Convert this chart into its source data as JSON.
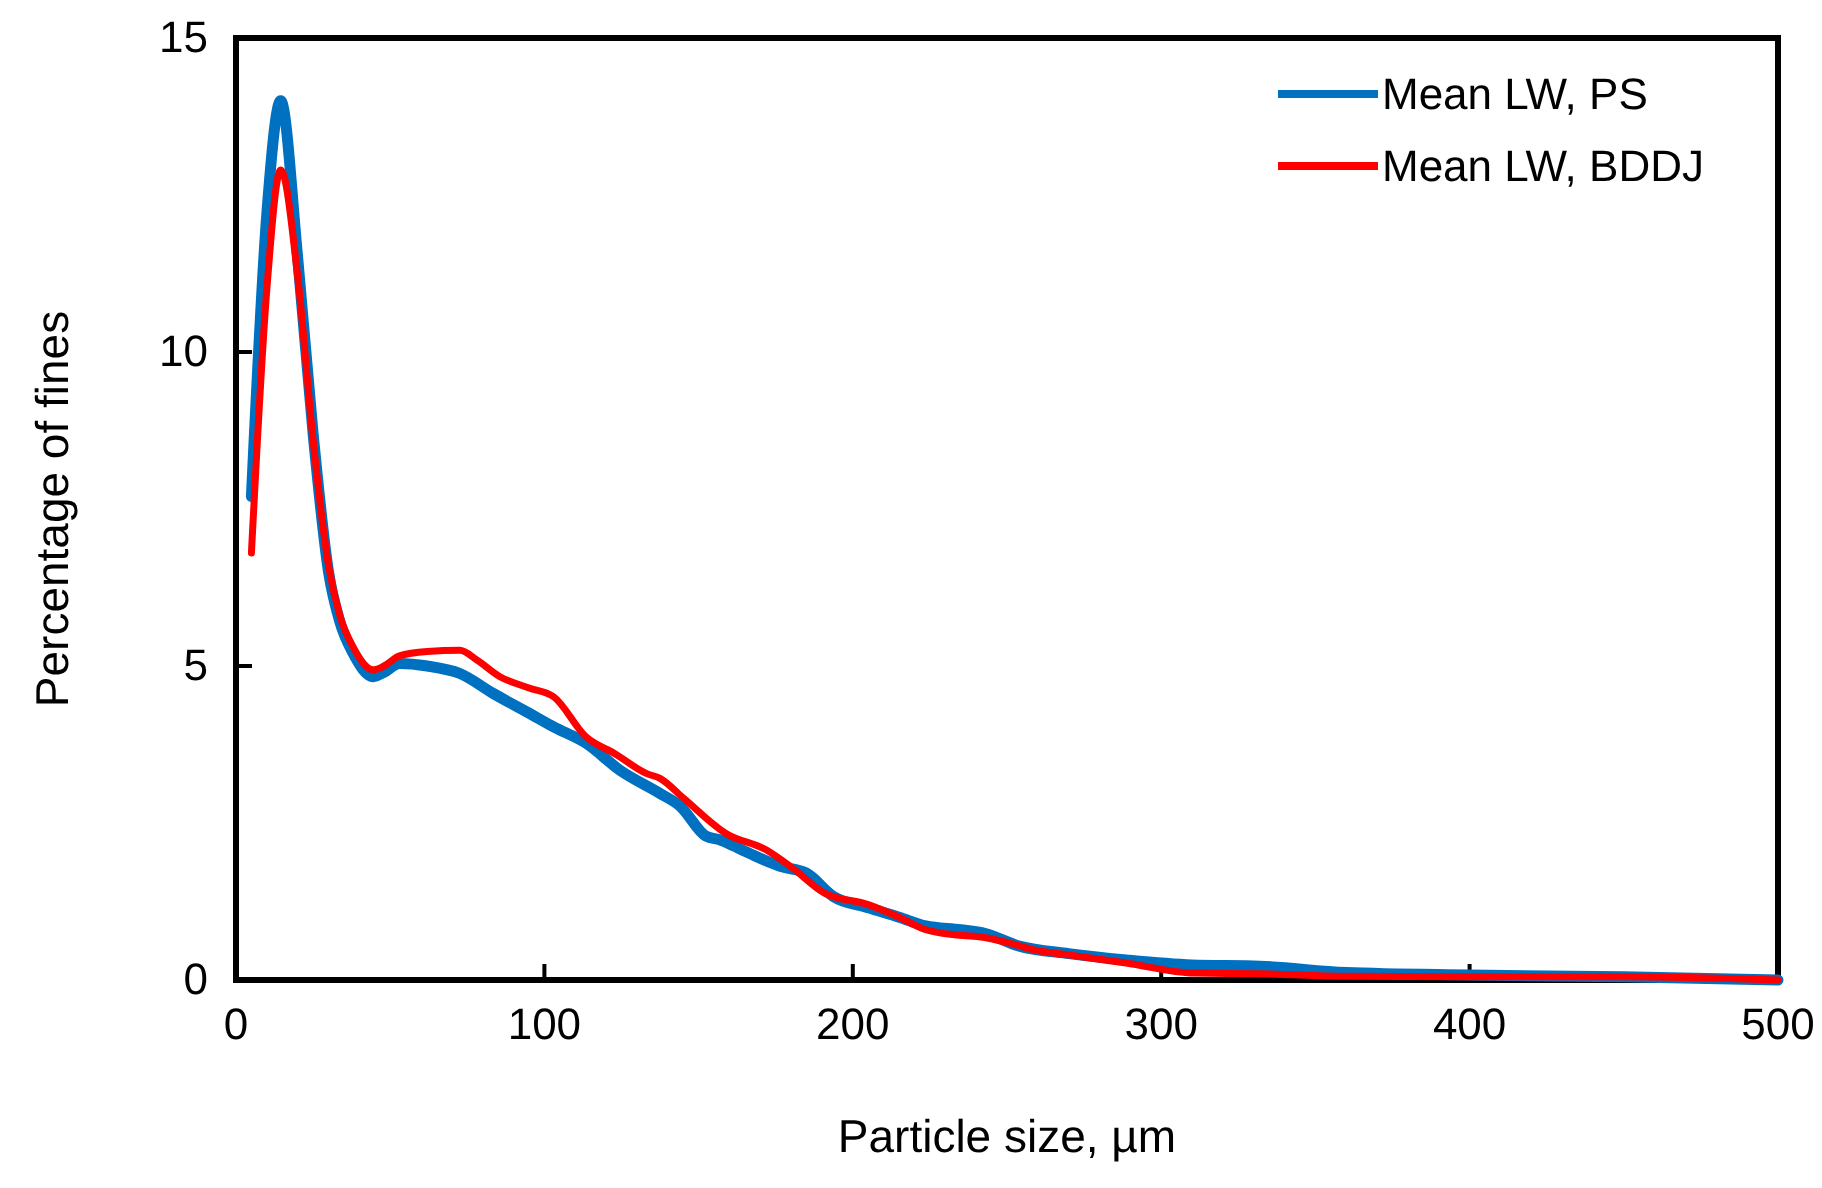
{
  "chart_data": {
    "type": "line",
    "xlabel": "Particle size, µm",
    "ylabel": "Percentage of fines",
    "xlim": [
      0,
      500
    ],
    "xticks": [
      0,
      100,
      200,
      300,
      400,
      500
    ],
    "ylim": [
      0,
      15
    ],
    "yticks": [
      0,
      5,
      10,
      15
    ],
    "grid": false,
    "legend": "top right",
    "marker": "none",
    "line_style": "solid",
    "series": [
      {
        "name": "Mean LW, PS",
        "color": "#0070c0",
        "x": [
          5,
          10,
          14.5,
          20,
          25,
          30,
          33.7,
          38,
          44.5,
          48,
          53,
          62,
          72.6,
          83.5,
          95,
          103,
          113.5,
          124.5,
          137.5,
          144,
          152.4,
          157,
          165,
          176.4,
          185,
          193.7,
          205,
          215,
          223.7,
          235,
          243,
          254,
          270,
          288.6,
          310,
          332,
          360,
          400,
          450,
          500
        ],
        "values": [
          7.7,
          12.2,
          14.0,
          11.5,
          8.7,
          6.5,
          5.7,
          5.2,
          4.83,
          4.9,
          5.04,
          5.0,
          4.88,
          4.56,
          4.25,
          4.03,
          3.77,
          3.34,
          2.97,
          2.77,
          2.29,
          2.23,
          2.05,
          1.81,
          1.7,
          1.33,
          1.15,
          1.0,
          0.86,
          0.8,
          0.74,
          0.54,
          0.42,
          0.32,
          0.24,
          0.22,
          0.12,
          0.08,
          0.05,
          0.0
        ]
      },
      {
        "name": "Mean LW, BDDJ",
        "color": "#ff0000",
        "x": [
          5,
          10,
          14.5,
          20,
          25,
          30,
          33.7,
          38,
          44.5,
          48,
          53,
          62,
          72.6,
          78,
          85.6,
          95,
          103,
          113.5,
          123,
          133,
          137.5,
          145,
          159,
          172,
          180,
          191,
          205,
          215,
          223.7,
          233,
          241,
          250,
          258.8,
          270,
          288.6,
          310.6,
          332,
          360,
          400,
          450,
          500
        ],
        "values": [
          6.8,
          11.0,
          12.9,
          11.2,
          8.6,
          6.6,
          5.8,
          5.3,
          4.94,
          5.0,
          5.16,
          5.23,
          5.25,
          5.1,
          4.83,
          4.65,
          4.51,
          3.87,
          3.6,
          3.29,
          3.21,
          2.9,
          2.33,
          2.07,
          1.8,
          1.38,
          1.2,
          1.0,
          0.8,
          0.72,
          0.69,
          0.6,
          0.48,
          0.4,
          0.27,
          0.11,
          0.1,
          0.06,
          0.05,
          0.05,
          0.0
        ]
      }
    ]
  }
}
